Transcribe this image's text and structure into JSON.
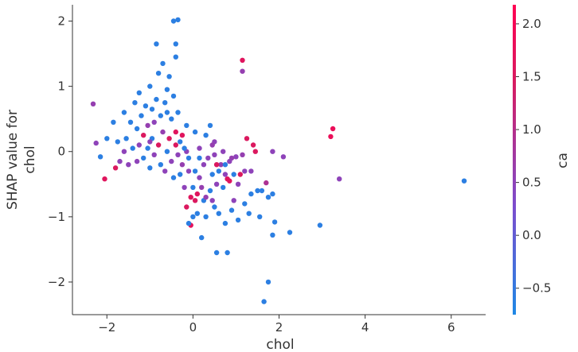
{
  "chart_data": {
    "type": "scatter",
    "xlabel": "chol",
    "ylabel": "SHAP value for\nchol",
    "xlim": [
      -2.8,
      6.8
    ],
    "ylim": [
      -2.5,
      2.25
    ],
    "x_ticks": [
      -2,
      0,
      2,
      4,
      6
    ],
    "x_tick_labels": [
      "−2",
      "0",
      "2",
      "4",
      "6"
    ],
    "y_ticks": [
      -2,
      -1,
      0,
      1,
      2
    ],
    "y_tick_labels": [
      "−2",
      "−1",
      "0",
      "1",
      "2"
    ],
    "colorbar": {
      "label": "ca",
      "range": [
        -0.75,
        2.18
      ],
      "ticks": [
        -0.5,
        0.0,
        0.5,
        1.0,
        1.5,
        2.0
      ],
      "tick_labels": [
        "−0.5",
        "0.0",
        "0.5",
        "1.0",
        "1.5",
        "2.0"
      ],
      "colors": [
        "#1e88e5",
        "#7c4dce",
        "#d81b60",
        "#ff0052"
      ]
    },
    "points": [
      {
        "x": 6.3,
        "y": -0.45,
        "c": -0.6
      },
      {
        "x": 3.4,
        "y": -0.42,
        "c": 0.5
      },
      {
        "x": 3.25,
        "y": 0.35,
        "c": 1.8
      },
      {
        "x": 3.2,
        "y": 0.23,
        "c": 1.8
      },
      {
        "x": 2.95,
        "y": -1.13,
        "c": -0.6
      },
      {
        "x": 2.25,
        "y": -1.24,
        "c": -0.6
      },
      {
        "x": 2.1,
        "y": -0.08,
        "c": 0.5
      },
      {
        "x": 1.9,
        "y": -1.08,
        "c": -0.6
      },
      {
        "x": 1.85,
        "y": -1.28,
        "c": -0.6
      },
      {
        "x": 1.85,
        "y": -0.65,
        "c": -0.6
      },
      {
        "x": 1.75,
        "y": -2.0,
        "c": -0.6
      },
      {
        "x": 1.65,
        "y": -2.3,
        "c": -0.6
      },
      {
        "x": 1.7,
        "y": -0.48,
        "c": 0.9
      },
      {
        "x": 1.75,
        "y": -0.7,
        "c": -0.6
      },
      {
        "x": 1.85,
        "y": 0.0,
        "c": 0.5
      },
      {
        "x": 1.55,
        "y": -1.0,
        "c": -0.6
      },
      {
        "x": 1.6,
        "y": -0.6,
        "c": -0.6
      },
      {
        "x": 1.5,
        "y": -0.6,
        "c": -0.6
      },
      {
        "x": 1.45,
        "y": 0.0,
        "c": 1.5
      },
      {
        "x": 1.4,
        "y": 0.1,
        "c": 1.5
      },
      {
        "x": 1.35,
        "y": -0.65,
        "c": -0.6
      },
      {
        "x": 1.3,
        "y": -0.95,
        "c": -0.6
      },
      {
        "x": 1.25,
        "y": 0.2,
        "c": 1.5
      },
      {
        "x": 1.2,
        "y": -0.3,
        "c": 0.5
      },
      {
        "x": 1.15,
        "y": 1.4,
        "c": 1.6
      },
      {
        "x": 1.15,
        "y": 1.23,
        "c": 0.6
      },
      {
        "x": 1.1,
        "y": -0.35,
        "c": 1.5
      },
      {
        "x": 1.15,
        "y": -0.05,
        "c": 0.6
      },
      {
        "x": 1.05,
        "y": -0.5,
        "c": 0.5
      },
      {
        "x": 1.05,
        "y": -1.05,
        "c": -0.6
      },
      {
        "x": 1.0,
        "y": -0.08,
        "c": 0.5
      },
      {
        "x": 0.95,
        "y": -0.35,
        "c": -0.6
      },
      {
        "x": 0.95,
        "y": -0.75,
        "c": 0.5
      },
      {
        "x": 0.9,
        "y": -0.1,
        "c": 0.6
      },
      {
        "x": 0.85,
        "y": -0.45,
        "c": 1.6
      },
      {
        "x": 0.85,
        "y": -0.15,
        "c": 0.5
      },
      {
        "x": 0.8,
        "y": -1.55,
        "c": -0.6
      },
      {
        "x": 0.8,
        "y": -0.42,
        "c": 1.6
      },
      {
        "x": 0.75,
        "y": -1.1,
        "c": -0.6
      },
      {
        "x": 0.75,
        "y": -0.35,
        "c": 0.5
      },
      {
        "x": 0.7,
        "y": 0.0,
        "c": 0.5
      },
      {
        "x": 0.65,
        "y": -0.2,
        "c": 0.6
      },
      {
        "x": 0.6,
        "y": -0.95,
        "c": -0.6
      },
      {
        "x": 0.6,
        "y": -0.3,
        "c": -0.6
      },
      {
        "x": 0.55,
        "y": -1.55,
        "c": -0.6
      },
      {
        "x": 0.55,
        "y": -0.5,
        "c": 0.5
      },
      {
        "x": 0.5,
        "y": -0.85,
        "c": -0.6
      },
      {
        "x": 0.5,
        "y": 0.15,
        "c": 0.5
      },
      {
        "x": 0.5,
        "y": -0.05,
        "c": 0.5
      },
      {
        "x": 0.45,
        "y": 0.1,
        "c": 0.6
      },
      {
        "x": 0.45,
        "y": -0.35,
        "c": -0.6
      },
      {
        "x": 0.4,
        "y": 0.4,
        "c": -0.6
      },
      {
        "x": 0.4,
        "y": -0.6,
        "c": -0.6
      },
      {
        "x": 0.35,
        "y": -0.1,
        "c": 0.5
      },
      {
        "x": 0.3,
        "y": 0.25,
        "c": -0.6
      },
      {
        "x": 0.3,
        "y": -1.0,
        "c": -0.6
      },
      {
        "x": 0.25,
        "y": -0.2,
        "c": 0.5
      },
      {
        "x": 0.25,
        "y": -0.75,
        "c": -0.6
      },
      {
        "x": 0.2,
        "y": -1.32,
        "c": -0.6
      },
      {
        "x": 0.2,
        "y": -0.55,
        "c": 0.6
      },
      {
        "x": 0.15,
        "y": -0.1,
        "c": -0.6
      },
      {
        "x": 0.15,
        "y": -0.4,
        "c": 0.5
      },
      {
        "x": 0.1,
        "y": -0.65,
        "c": 1.6
      },
      {
        "x": 0.1,
        "y": -0.95,
        "c": -0.6
      },
      {
        "x": 0.05,
        "y": -0.75,
        "c": 1.5
      },
      {
        "x": 0.05,
        "y": -0.3,
        "c": -0.6
      },
      {
        "x": 0.0,
        "y": -0.55,
        "c": -0.6
      },
      {
        "x": 0.0,
        "y": -1.0,
        "c": -0.6
      },
      {
        "x": -0.05,
        "y": -1.13,
        "c": 1.7
      },
      {
        "x": -0.05,
        "y": -0.7,
        "c": 1.6
      },
      {
        "x": -0.1,
        "y": -0.1,
        "c": -0.6
      },
      {
        "x": -0.1,
        "y": -1.1,
        "c": -0.6
      },
      {
        "x": -0.1,
        "y": -0.3,
        "c": 0.5
      },
      {
        "x": -0.15,
        "y": 0.0,
        "c": 0.5
      },
      {
        "x": -0.15,
        "y": 0.4,
        "c": -0.6
      },
      {
        "x": -0.2,
        "y": -0.55,
        "c": 0.5
      },
      {
        "x": -0.2,
        "y": 0.05,
        "c": -0.6
      },
      {
        "x": -0.25,
        "y": -0.2,
        "c": 0.6
      },
      {
        "x": -0.3,
        "y": 0.15,
        "c": -0.6
      },
      {
        "x": -0.3,
        "y": -0.35,
        "c": -0.6
      },
      {
        "x": -0.35,
        "y": 0.6,
        "c": -0.6
      },
      {
        "x": -0.35,
        "y": -0.05,
        "c": 0.5
      },
      {
        "x": -0.4,
        "y": 0.1,
        "c": 1.5
      },
      {
        "x": -0.4,
        "y": 0.3,
        "c": 1.6
      },
      {
        "x": -0.45,
        "y": -0.4,
        "c": -0.6
      },
      {
        "x": -0.45,
        "y": 0.85,
        "c": -0.6
      },
      {
        "x": -0.45,
        "y": 2.0,
        "c": -0.6
      },
      {
        "x": -0.35,
        "y": 2.02,
        "c": -0.6
      },
      {
        "x": -0.4,
        "y": 1.65,
        "c": -0.6
      },
      {
        "x": -0.4,
        "y": 1.45,
        "c": -0.6
      },
      {
        "x": -0.5,
        "y": 0.5,
        "c": -0.6
      },
      {
        "x": -0.5,
        "y": -0.15,
        "c": 0.5
      },
      {
        "x": -0.55,
        "y": 0.2,
        "c": 1.5
      },
      {
        "x": -0.55,
        "y": 1.15,
        "c": -0.6
      },
      {
        "x": -0.6,
        "y": 0.95,
        "c": -0.6
      },
      {
        "x": -0.6,
        "y": 0.0,
        "c": -0.6
      },
      {
        "x": -0.65,
        "y": 0.75,
        "c": -0.6
      },
      {
        "x": -0.65,
        "y": -0.3,
        "c": 0.5
      },
      {
        "x": -0.7,
        "y": 1.35,
        "c": -0.6
      },
      {
        "x": -0.7,
        "y": 0.3,
        "c": 0.6
      },
      {
        "x": -0.75,
        "y": 0.55,
        "c": -0.6
      },
      {
        "x": -0.75,
        "y": -0.2,
        "c": -0.6
      },
      {
        "x": -0.8,
        "y": 1.2,
        "c": -0.6
      },
      {
        "x": -0.8,
        "y": 0.1,
        "c": 1.5
      },
      {
        "x": -0.85,
        "y": 1.65,
        "c": -0.6
      },
      {
        "x": -0.85,
        "y": 0.8,
        "c": -0.6
      },
      {
        "x": -0.9,
        "y": 0.45,
        "c": 0.5
      },
      {
        "x": -0.9,
        "y": -0.05,
        "c": 0.5
      },
      {
        "x": -0.95,
        "y": 0.65,
        "c": -0.6
      },
      {
        "x": -0.95,
        "y": 0.2,
        "c": -0.6
      },
      {
        "x": -1.0,
        "y": 1.0,
        "c": -0.6
      },
      {
        "x": -1.0,
        "y": -0.25,
        "c": -0.6
      },
      {
        "x": -1.05,
        "y": 0.4,
        "c": 0.6
      },
      {
        "x": -1.05,
        "y": 0.05,
        "c": -0.6
      },
      {
        "x": -1.1,
        "y": 0.7,
        "c": -0.6
      },
      {
        "x": -1.15,
        "y": 0.25,
        "c": 1.5
      },
      {
        "x": -1.15,
        "y": -0.1,
        "c": -0.6
      },
      {
        "x": -1.2,
        "y": 0.55,
        "c": -0.6
      },
      {
        "x": -1.25,
        "y": 0.9,
        "c": -0.6
      },
      {
        "x": -1.25,
        "y": 0.1,
        "c": 0.5
      },
      {
        "x": -1.3,
        "y": -0.15,
        "c": 0.5
      },
      {
        "x": -1.3,
        "y": 0.35,
        "c": -0.6
      },
      {
        "x": -1.35,
        "y": 0.75,
        "c": -0.6
      },
      {
        "x": -1.4,
        "y": 0.05,
        "c": -0.6
      },
      {
        "x": -1.45,
        "y": 0.45,
        "c": -0.6
      },
      {
        "x": -1.5,
        "y": -0.2,
        "c": 0.5
      },
      {
        "x": -1.55,
        "y": 0.2,
        "c": -0.6
      },
      {
        "x": -1.6,
        "y": 0.6,
        "c": -0.6
      },
      {
        "x": -1.6,
        "y": 0.0,
        "c": 0.5
      },
      {
        "x": -1.7,
        "y": -0.15,
        "c": 0.5
      },
      {
        "x": -1.75,
        "y": 0.15,
        "c": -0.6
      },
      {
        "x": -1.8,
        "y": -0.25,
        "c": 1.5
      },
      {
        "x": -1.85,
        "y": 0.45,
        "c": -0.6
      },
      {
        "x": -2.0,
        "y": 0.2,
        "c": -0.6
      },
      {
        "x": -2.05,
        "y": -0.42,
        "c": 1.6
      },
      {
        "x": -2.15,
        "y": -0.08,
        "c": -0.6
      },
      {
        "x": -2.25,
        "y": 0.13,
        "c": 0.5
      },
      {
        "x": -2.32,
        "y": 0.73,
        "c": 0.6
      },
      {
        "x": 0.55,
        "y": -0.2,
        "c": 1.5
      },
      {
        "x": 0.3,
        "y": -0.7,
        "c": 0.6
      },
      {
        "x": 0.7,
        "y": -0.55,
        "c": -0.6
      },
      {
        "x": 0.9,
        "y": -0.9,
        "c": -0.6
      },
      {
        "x": 1.2,
        "y": -0.8,
        "c": -0.6
      },
      {
        "x": 1.35,
        "y": -0.3,
        "c": 0.5
      },
      {
        "x": 0.15,
        "y": 0.05,
        "c": 0.5
      },
      {
        "x": -0.25,
        "y": 0.25,
        "c": 1.6
      },
      {
        "x": -0.6,
        "y": 0.6,
        "c": -0.6
      },
      {
        "x": -1.0,
        "y": 0.15,
        "c": 0.5
      },
      {
        "x": -0.15,
        "y": -0.85,
        "c": 1.5
      },
      {
        "x": 0.05,
        "y": 0.3,
        "c": -0.6
      },
      {
        "x": 0.45,
        "y": -0.75,
        "c": 0.5
      },
      {
        "x": 0.75,
        "y": -0.2,
        "c": -0.6
      }
    ]
  }
}
